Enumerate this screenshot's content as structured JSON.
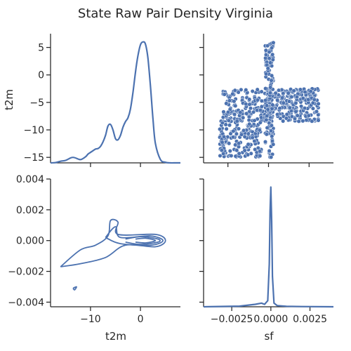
{
  "figure": {
    "title": "State Raw Pair Density Virginia"
  },
  "chart_data": [
    {
      "type": "line",
      "panel": "t2m-t2m",
      "xlabel": "",
      "ylabel": "t2m",
      "xlim": [
        -18,
        8
      ],
      "ylim": [
        -16,
        7.5
      ],
      "y_ticks": [
        5,
        0,
        -5,
        -10,
        -15
      ],
      "y_tick_labels": [
        "5",
        "0",
        "−5",
        "−10",
        "−15"
      ],
      "x": [
        -18,
        -17,
        -16,
        -15,
        -14,
        -13.5,
        -13,
        -12,
        -11,
        -10.5,
        -10,
        -9,
        -8.5,
        -8,
        -7.5,
        -7,
        -6.5,
        -6,
        -5.5,
        -5,
        -4.5,
        -4,
        -3.5,
        -3,
        -2.5,
        -2,
        -1.5,
        -1,
        -0.5,
        0,
        0.5,
        1,
        1.5,
        2,
        2.5,
        3,
        4,
        5,
        6,
        7,
        8
      ],
      "y": [
        -16,
        -15.95,
        -15.7,
        -15.55,
        -15.1,
        -15.0,
        -15.1,
        -15.4,
        -14.9,
        -14.4,
        -14.1,
        -13.5,
        -13.4,
        -13.0,
        -12.2,
        -11.0,
        -9.3,
        -9.0,
        -10.0,
        -11.6,
        -11.8,
        -11.0,
        -9.5,
        -8.5,
        -7.8,
        -6.2,
        -3.2,
        0.5,
        3.5,
        5.5,
        6.0,
        5.6,
        3.0,
        -2.0,
        -8.0,
        -12.5,
        -15.4,
        -15.9,
        -16,
        -16,
        -16
      ]
    },
    {
      "type": "scatter",
      "panel": "sf-t2m",
      "xlabel": "",
      "ylabel": "",
      "xlim": [
        -0.004,
        0.004
      ],
      "ylim": [
        -16,
        7.5
      ],
      "point_color": "#4c72b0",
      "description_clusters": [
        {
          "x_range": [
            -0.0028,
            0.0031
          ],
          "y_range": [
            -8.5,
            -2.5
          ],
          "count": 380
        },
        {
          "x_range": [
            -0.003,
            -0.0004
          ],
          "y_range": [
            -15,
            -8
          ],
          "count": 170
        },
        {
          "x_range": [
            -0.0002,
            0.0003
          ],
          "y_range": [
            -15,
            6
          ],
          "count": 140
        }
      ]
    },
    {
      "type": "contour",
      "panel": "t2m-sf",
      "xlabel": "t2m",
      "ylabel": "",
      "xlim": [
        -18,
        8
      ],
      "ylim": [
        -0.0043,
        0.004
      ],
      "x_ticks": [
        -10,
        0
      ],
      "x_tick_labels": [
        "−10",
        "0"
      ],
      "y_ticks": [
        0.004,
        0.002,
        0.0,
        -0.002,
        -0.004
      ],
      "y_tick_labels": [
        "0.004",
        "0.002",
        "0.000",
        "−0.002",
        "−0.004"
      ]
    },
    {
      "type": "line",
      "panel": "sf-sf",
      "xlabel": "sf",
      "ylabel": "",
      "xlim": [
        -0.0043,
        0.004
      ],
      "ylim": [
        0,
        1
      ],
      "x_ticks": [
        -0.0025,
        0.0,
        0.0025
      ],
      "x_tick_labels": [
        "−0.0025",
        "0.0000",
        "0.0025"
      ],
      "x": [
        -0.0043,
        -0.003,
        -0.002,
        -0.001,
        -0.0006,
        -0.0004,
        -0.0002,
        -0.0001,
        -5e-05,
        0.0,
        5e-05,
        0.0001,
        0.0002,
        0.0004,
        0.001,
        0.002,
        0.004
      ],
      "y": [
        0.0,
        0.003,
        0.005,
        0.02,
        0.03,
        0.02,
        0.05,
        0.35,
        0.78,
        0.98,
        0.7,
        0.25,
        0.03,
        0.01,
        0.004,
        0.002,
        0.0
      ]
    }
  ]
}
